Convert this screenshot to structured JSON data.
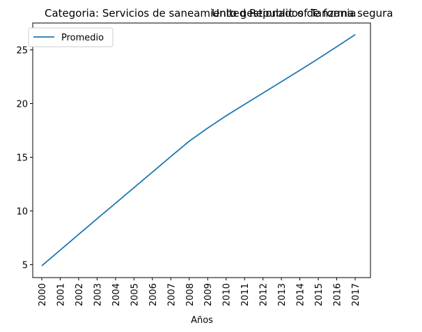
{
  "chart_data": {
    "type": "line",
    "title_left": "Categoria: Servicios de saneamiento gestionados de forma segura",
    "title_right": "United Republic of Tanzania",
    "xlabel": "Años",
    "ylabel": "",
    "categories": [
      "2000",
      "2001",
      "2002",
      "2003",
      "2004",
      "2005",
      "2006",
      "2007",
      "2008",
      "2009",
      "2010",
      "2011",
      "2012",
      "2013",
      "2014",
      "2015",
      "2016",
      "2017"
    ],
    "series": [
      {
        "name": "Promedio",
        "color": "#1f77b4",
        "values": [
          4.9,
          6.36,
          7.82,
          9.28,
          10.72,
          12.17,
          13.62,
          15.07,
          16.5,
          17.72,
          18.86,
          19.93,
          20.98,
          22.04,
          23.1,
          24.18,
          25.29,
          26.42
        ]
      }
    ],
    "ylim": [
      3.8,
      27.5
    ],
    "yticks": [
      5,
      10,
      15,
      20,
      25
    ],
    "grid": false,
    "legend_position": "upper left"
  }
}
